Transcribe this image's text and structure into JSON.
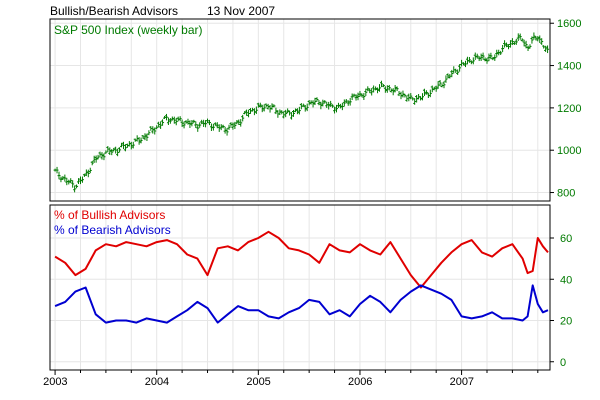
{
  "title": "Bullish/Bearish Advisors",
  "date": "13 Nov 2007",
  "colors": {
    "sp500": "#007a00",
    "bullish": "#e00000",
    "bearish": "#0000d0",
    "axis_text_top": "#007a00",
    "axis_text_bottom": "#007a00",
    "grid": "#e6e6e6"
  },
  "chart_data": [
    {
      "type": "ohlc",
      "legend": [
        "S&P 500 Index (weekly bar)"
      ],
      "y_ticks": [
        800,
        1000,
        1200,
        1400,
        1600
      ],
      "ylim": [
        760,
        1620
      ],
      "x_ticks": [
        "2003",
        "2004",
        "2005",
        "2006",
        "2007"
      ],
      "xlim": [
        2002.95,
        2007.87
      ],
      "series": [
        {
          "name": "S&P 500 Index (weekly bar)",
          "x": [
            2003.0,
            2003.1,
            2003.2,
            2003.3,
            2003.4,
            2003.5,
            2003.6,
            2003.7,
            2003.8,
            2003.9,
            2004.0,
            2004.1,
            2004.2,
            2004.3,
            2004.4,
            2004.5,
            2004.6,
            2004.7,
            2004.8,
            2004.9,
            2005.0,
            2005.1,
            2005.2,
            2005.3,
            2005.4,
            2005.5,
            2005.6,
            2005.7,
            2005.8,
            2005.9,
            2006.0,
            2006.1,
            2006.2,
            2006.3,
            2006.4,
            2006.5,
            2006.6,
            2006.7,
            2006.8,
            2006.9,
            2007.0,
            2007.1,
            2007.2,
            2007.3,
            2007.4,
            2007.5,
            2007.6,
            2007.65,
            2007.7,
            2007.75,
            2007.8,
            2007.85
          ],
          "values": [
            900,
            860,
            830,
            880,
            960,
            990,
            1000,
            1020,
            1040,
            1070,
            1110,
            1150,
            1140,
            1130,
            1120,
            1130,
            1110,
            1100,
            1130,
            1180,
            1200,
            1210,
            1180,
            1170,
            1190,
            1220,
            1230,
            1210,
            1200,
            1240,
            1260,
            1280,
            1300,
            1290,
            1270,
            1240,
            1250,
            1280,
            1310,
            1360,
            1400,
            1430,
            1440,
            1430,
            1480,
            1510,
            1530,
            1480,
            1520,
            1540,
            1500,
            1460
          ]
        }
      ]
    },
    {
      "type": "line",
      "legend": [
        "% of Bullish Advisors",
        "% of Bearish Advisors"
      ],
      "y_ticks": [
        0,
        20,
        40,
        60
      ],
      "ylim": [
        -4,
        76
      ],
      "x_ticks": [
        "2003",
        "2004",
        "2005",
        "2006",
        "2007"
      ],
      "xlim": [
        2002.95,
        2007.87
      ],
      "series": [
        {
          "name": "% of Bullish Advisors",
          "x": [
            2003.0,
            2003.1,
            2003.2,
            2003.3,
            2003.4,
            2003.5,
            2003.6,
            2003.7,
            2003.8,
            2003.9,
            2004.0,
            2004.1,
            2004.2,
            2004.3,
            2004.4,
            2004.5,
            2004.6,
            2004.7,
            2004.8,
            2004.9,
            2005.0,
            2005.1,
            2005.2,
            2005.3,
            2005.4,
            2005.5,
            2005.6,
            2005.7,
            2005.8,
            2005.9,
            2006.0,
            2006.1,
            2006.2,
            2006.3,
            2006.4,
            2006.5,
            2006.6,
            2006.7,
            2006.8,
            2006.9,
            2007.0,
            2007.1,
            2007.2,
            2007.3,
            2007.4,
            2007.5,
            2007.6,
            2007.65,
            2007.7,
            2007.75,
            2007.8,
            2007.85
          ],
          "values": [
            51,
            48,
            42,
            45,
            54,
            57,
            56,
            58,
            57,
            56,
            58,
            59,
            57,
            52,
            50,
            42,
            55,
            56,
            54,
            58,
            60,
            63,
            60,
            55,
            54,
            52,
            48,
            57,
            54,
            53,
            57,
            54,
            52,
            58,
            50,
            42,
            36,
            42,
            48,
            53,
            57,
            59,
            53,
            51,
            55,
            57,
            50,
            43,
            44,
            60,
            56,
            53
          ]
        },
        {
          "name": "% of Bearish Advisors",
          "x": [
            2003.0,
            2003.1,
            2003.2,
            2003.3,
            2003.4,
            2003.5,
            2003.6,
            2003.7,
            2003.8,
            2003.9,
            2004.0,
            2004.1,
            2004.2,
            2004.3,
            2004.4,
            2004.5,
            2004.6,
            2004.7,
            2004.8,
            2004.9,
            2005.0,
            2005.1,
            2005.2,
            2005.3,
            2005.4,
            2005.5,
            2005.6,
            2005.7,
            2005.8,
            2005.9,
            2006.0,
            2006.1,
            2006.2,
            2006.3,
            2006.4,
            2006.5,
            2006.6,
            2006.7,
            2006.8,
            2006.9,
            2007.0,
            2007.1,
            2007.2,
            2007.3,
            2007.4,
            2007.5,
            2007.6,
            2007.65,
            2007.7,
            2007.75,
            2007.8,
            2007.85
          ],
          "values": [
            27,
            29,
            34,
            36,
            23,
            19,
            20,
            20,
            19,
            21,
            20,
            19,
            22,
            25,
            29,
            26,
            19,
            23,
            27,
            25,
            25,
            22,
            21,
            24,
            26,
            30,
            29,
            23,
            25,
            22,
            28,
            32,
            29,
            24,
            30,
            34,
            37,
            35,
            33,
            30,
            22,
            21,
            22,
            24,
            21,
            21,
            20,
            22,
            37,
            28,
            24,
            25
          ]
        }
      ]
    }
  ]
}
